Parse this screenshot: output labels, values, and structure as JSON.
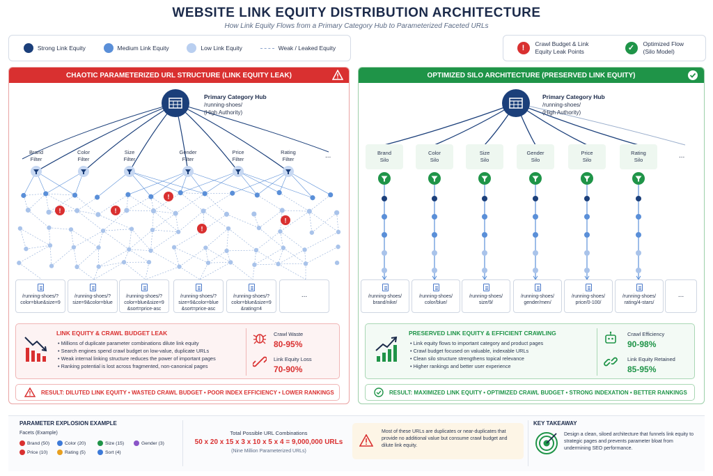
{
  "title": "WEBSITE LINK EQUITY DISTRIBUTION ARCHITECTURE",
  "subtitle": "How Link Equity Flows from a Primary Category Hub to Parameterized Faceted URLs",
  "legend": {
    "strong": "Strong Link Equity",
    "medium": "Medium Link Equity",
    "low": "Low Link Equity",
    "weak": "Weak / Leaked Equity",
    "leak_points": "Crawl Budget & Link Equity Leak Points",
    "optimized": "Optimized Flow (Silo Model)"
  },
  "colors": {
    "strong": "#1b3f7a",
    "medium": "#5a8fd8",
    "low": "#b9cff0",
    "red": "#d93030",
    "green": "#1f9448"
  },
  "left": {
    "header": "CHAOTIC PARAMETERIZED URL STRUCTURE (LINK EQUITY LEAK)",
    "hub_title": "Primary Category Hub",
    "hub_path": "/running-shoes/",
    "hub_auth": "(High Authority)",
    "filters": [
      {
        "l1": "Brand",
        "l2": "Filter"
      },
      {
        "l1": "Color",
        "l2": "Filter"
      },
      {
        "l1": "Size",
        "l2": "Filter"
      },
      {
        "l1": "Gender",
        "l2": "Filter"
      },
      {
        "l1": "Price",
        "l2": "Filter"
      },
      {
        "l1": "Rating",
        "l2": "Filter"
      }
    ],
    "more": "...",
    "urls": [
      {
        "l1": "/running-shoes/?",
        "l2": "color=blue&size=9",
        "l3": ""
      },
      {
        "l1": "/running-shoes/?",
        "l2": "size=9&color=blue",
        "l3": ""
      },
      {
        "l1": "/running-shoes/?",
        "l2": "color=blue&size=9",
        "l3": "&sort=price-asc"
      },
      {
        "l1": "/running-shoes/?",
        "l2": "size=9&color=blue",
        "l3": "&sort=price-asc"
      },
      {
        "l1": "/running-shoes/?",
        "l2": "color=blue&size=9",
        "l3": "&rating=4"
      },
      {
        "l1": "",
        "l2": "",
        "l3": ""
      }
    ],
    "info_title": "LINK EQUITY & CRAWL BUDGET LEAK",
    "info_items": [
      "Millions of duplicate parameter combinations dilute link equity",
      "Search engines spend crawl budget on low-value, duplicate URLs",
      "Weak internal linking structure reduces the power of important pages",
      "Ranking potential is lost across fragmented, non-canonical pages"
    ],
    "stat1_label": "Crawl Waste",
    "stat1_value": "80-95%",
    "stat2_label": "Link Equity Loss",
    "stat2_value": "70-90%",
    "result": "RESULT: DILUTED LINK EQUITY • WASTED CRAWL BUDGET • POOR INDEX EFFICIENCY • LOWER RANKINGS"
  },
  "right": {
    "header": "OPTIMIZED SILO ARCHITECTURE (PRESERVED LINK EQUITY)",
    "hub_title": "Primary Category Hub",
    "hub_path": "/running-shoes/",
    "hub_auth": "(High Authority)",
    "silos": [
      {
        "l1": "Brand",
        "l2": "Silo"
      },
      {
        "l1": "Color",
        "l2": "Silo"
      },
      {
        "l1": "Size",
        "l2": "Silo"
      },
      {
        "l1": "Gender",
        "l2": "Silo"
      },
      {
        "l1": "Price",
        "l2": "Silo"
      },
      {
        "l1": "Rating",
        "l2": "Silo"
      }
    ],
    "more": "...",
    "urls": [
      {
        "l1": "/running-shoes/",
        "l2": "brand/nike/"
      },
      {
        "l1": "/running-shoes/",
        "l2": "color/blue/"
      },
      {
        "l1": "/running-shoes/",
        "l2": "size/9/"
      },
      {
        "l1": "/running-shoes/",
        "l2": "gender/men/"
      },
      {
        "l1": "/running-shoes/",
        "l2": "price/0-100/"
      },
      {
        "l1": "/running-shoes/",
        "l2": "rating/4-stars/"
      }
    ],
    "info_title": "PRESERVED LINK EQUITY & EFFICIENT CRAWLING",
    "info_items": [
      "Link equity flows to important category and product pages",
      "Crawl budget focused on valuable, indexable URLs",
      "Clean silo structure strengthens topical relevance",
      "Higher rankings and better user experience"
    ],
    "stat1_label": "Crawl Efficiency",
    "stat1_value": "90-98%",
    "stat2_label": "Link Equity Retained",
    "stat2_value": "85-95%",
    "result": "RESULT: MAXIMIZED LINK EQUITY • OPTIMIZED CRAWL BUDGET • STRONG INDEXATION • BETTER RANKINGS"
  },
  "bottom": {
    "param_title": "PARAMETER EXPLOSION EXAMPLE",
    "facets_title": "Facets (Example)",
    "facets": [
      {
        "label": "Brand (50)",
        "color": "#d93030"
      },
      {
        "label": "Color (20)",
        "color": "#3d7ad8"
      },
      {
        "label": "Size (15)",
        "color": "#1f9448"
      },
      {
        "label": "Gender (3)",
        "color": "#8a55c8"
      },
      {
        "label": "Price (10)",
        "color": "#d93030"
      },
      {
        "label": "Rating (5)",
        "color": "#e8a020"
      },
      {
        "label": "Sort (4)",
        "color": "#3d7ad8"
      }
    ],
    "total_title": "Total Possible URL Combinations",
    "formula": "50 x 20 x 15 x 3 x 10 x 5 x 4 = 9,000,000 URLs",
    "formula_note": "(Nine Million Parameterized URLs)",
    "warning": "Most of these URLs are duplicates or near-duplicates that provide no additional value but consume crawl budget and dilute link equity.",
    "takeaway_title": "KEY TAKEAWAY",
    "takeaway": "Design a clean, siloed architecture that funnels link equity to strategic pages and prevents parameter bloat from undermining SEO performance."
  }
}
